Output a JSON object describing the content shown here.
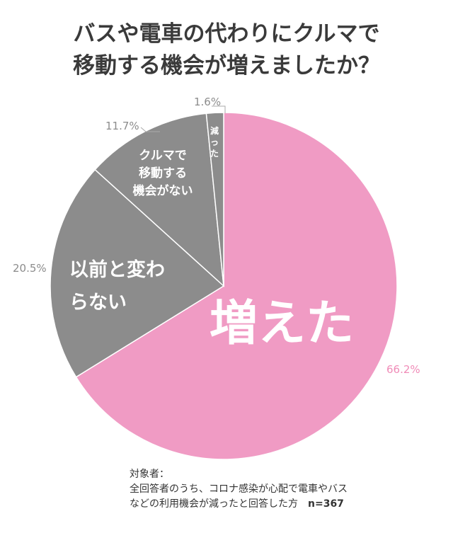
{
  "title_lines": [
    "バスや電車の代わりにクルマで",
    "移動する機会が増えましたか？"
  ],
  "chart_data": {
    "type": "pie",
    "start_angle_deg": 0,
    "direction": "clockwise",
    "slices": [
      {
        "label_lines": [
          "増えた"
        ],
        "value": 66.2,
        "value_label": "66.2%",
        "color": "#f09bc4"
      },
      {
        "label_lines": [
          "以前と変わ",
          "らない"
        ],
        "value": 20.5,
        "value_label": "20.5%",
        "color": "#8c8c8c"
      },
      {
        "label_lines": [
          "クルマで",
          "移動する",
          "機会がない"
        ],
        "value": 11.7,
        "value_label": "11.7%",
        "color": "#8c8c8c"
      },
      {
        "label_lines": [
          "減",
          "っ",
          "た"
        ],
        "value": 1.6,
        "value_label": "1.6%",
        "color": "#8c8c8c"
      }
    ]
  },
  "note": {
    "heading": "対象者：",
    "line1": "全回答者のうち、コロナ感染が心配で電車やバス",
    "line2": "などの利用機会が減ったと回答した方",
    "n": "n=367"
  }
}
